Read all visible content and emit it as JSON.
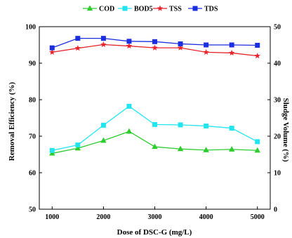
{
  "chart_data": {
    "type": "line",
    "x": [
      1000,
      1500,
      2000,
      2500,
      3000,
      3500,
      4000,
      4500,
      5000
    ],
    "xlabel": "Dose of DSC-G (mg/L)",
    "xlim": [
      750,
      5250
    ],
    "xticks": [
      1000,
      2000,
      3000,
      4000,
      5000
    ],
    "ylabel": "Removal Efficiency (%)",
    "ylim": [
      50,
      100
    ],
    "yticks": [
      50,
      60,
      70,
      80,
      90,
      100
    ],
    "y2label": "Sludge Volume (%)",
    "y2lim": [
      0,
      50
    ],
    "y2ticks": [
      0,
      10,
      20,
      30,
      40,
      50
    ],
    "legend_position": "top",
    "series": [
      {
        "name": "COD",
        "color": "#2ecc2e",
        "marker": "triangle-up",
        "values": [
          65.3,
          66.7,
          68.8,
          71.3,
          67.1,
          66.5,
          66.2,
          66.4,
          66.1
        ]
      },
      {
        "name": "BOD5",
        "color": "#22e5f0",
        "marker": "square",
        "values": [
          66.1,
          67.6,
          73.0,
          78.2,
          73.2,
          73.1,
          72.8,
          72.2,
          68.5
        ]
      },
      {
        "name": "TSS",
        "color": "#e8232a",
        "marker": "star",
        "values": [
          93.0,
          94.1,
          95.1,
          94.7,
          94.2,
          94.2,
          93.0,
          92.8,
          92.0
        ]
      },
      {
        "name": "TDS",
        "color": "#1c2fe0",
        "marker": "square",
        "values": [
          94.2,
          96.8,
          96.8,
          96.0,
          95.9,
          95.3,
          95.0,
          95.0,
          94.9
        ]
      }
    ]
  }
}
